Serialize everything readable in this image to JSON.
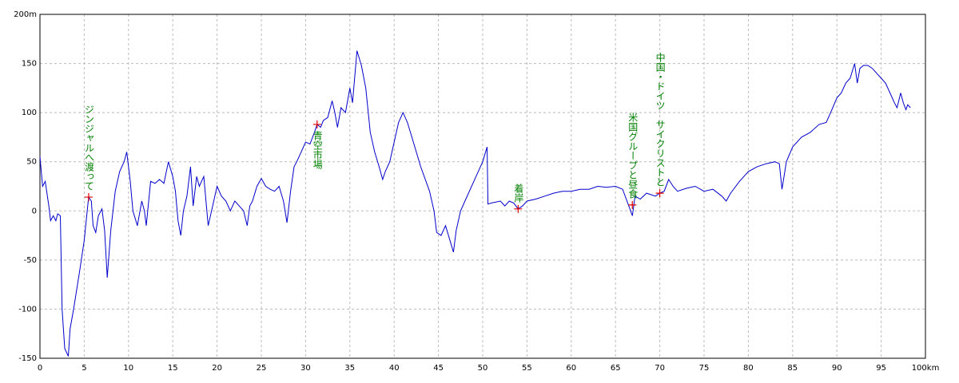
{
  "chart_data": {
    "type": "line",
    "color": "#0000cc",
    "grid": true,
    "xlim": [
      0,
      100
    ],
    "ylim": [
      -150,
      200
    ],
    "xticks": [
      0,
      5,
      10,
      15,
      20,
      25,
      30,
      35,
      40,
      45,
      50,
      55,
      60,
      65,
      70,
      75,
      80,
      85,
      90,
      95,
      {
        "value": 100,
        "label": "100km"
      }
    ],
    "yticks": [
      -150,
      -100,
      -50,
      0,
      50,
      100,
      150,
      {
        "value": 200,
        "label": "200m"
      }
    ],
    "x": [
      0,
      0.3,
      0.6,
      1.0,
      1.2,
      1.5,
      1.8,
      2.0,
      2.3,
      2.5,
      2.8,
      3.2,
      3.4,
      3.8,
      4.5,
      5.0,
      5.5,
      5.8,
      6.0,
      6.3,
      6.6,
      7.0,
      7.3,
      7.6,
      8.0,
      8.5,
      9.0,
      9.5,
      9.8,
      10.2,
      10.5,
      11.0,
      11.5,
      11.8,
      12.0,
      12.5,
      13.0,
      13.5,
      14.0,
      14.5,
      15.0,
      15.3,
      15.6,
      15.9,
      16.2,
      16.6,
      17.0,
      17.3,
      17.7,
      18.0,
      18.5,
      19.0,
      19.5,
      20.0,
      20.5,
      21.0,
      21.5,
      22.0,
      22.5,
      23.0,
      23.4,
      23.7,
      24.0,
      24.5,
      25.0,
      25.5,
      26.0,
      26.5,
      27.0,
      27.5,
      27.9,
      28.3,
      28.7,
      29.0,
      29.5,
      30.0,
      30.5,
      31.0,
      31.3,
      31.7,
      32.0,
      32.5,
      33.0,
      33.3,
      33.6,
      34.0,
      34.5,
      35.0,
      35.3,
      35.8,
      36.3,
      36.8,
      37.3,
      37.8,
      38.3,
      38.7,
      39.0,
      39.5,
      40.0,
      40.5,
      41.0,
      41.5,
      42.0,
      43.0,
      44.0,
      44.5,
      44.8,
      45.3,
      45.8,
      46.3,
      46.7,
      47.0,
      47.5,
      48.0,
      49.0,
      50.0,
      50.5,
      50.6,
      51.0,
      52.0,
      52.5,
      53.0,
      53.5,
      54.0,
      54.5,
      55.0,
      56.0,
      57.0,
      58.0,
      59.0,
      60.0,
      61.0,
      62.0,
      63.0,
      64.0,
      65.0,
      65.8,
      66.5,
      66.9,
      67.2,
      67.8,
      68.5,
      69.5,
      70.0,
      70.5,
      71.0,
      71.5,
      72.0,
      73.0,
      74.0,
      75.0,
      76.0,
      77.0,
      77.5,
      78.0,
      79.0,
      80.0,
      81.0,
      82.0,
      83.0,
      83.5,
      83.8,
      84.3,
      85.0,
      86.0,
      87.0,
      88.0,
      88.8,
      89.3,
      90.0,
      90.5,
      91.0,
      91.5,
      92.0,
      92.3,
      92.6,
      93.0,
      93.5,
      94.0,
      94.5,
      95.0,
      95.5,
      96.0,
      96.5,
      96.8,
      97.2,
      97.5,
      97.8,
      98.0,
      98.3
    ],
    "values": [
      55,
      25,
      30,
      5,
      -10,
      -5,
      -10,
      -3,
      -5,
      -100,
      -140,
      -148,
      -120,
      -100,
      -60,
      -30,
      14,
      10,
      -15,
      -22,
      -5,
      2,
      -20,
      -68,
      -20,
      20,
      40,
      50,
      60,
      30,
      0,
      -15,
      10,
      0,
      -15,
      30,
      28,
      32,
      28,
      50,
      35,
      20,
      -10,
      -25,
      0,
      15,
      45,
      5,
      35,
      25,
      35,
      -15,
      5,
      25,
      15,
      10,
      0,
      10,
      5,
      0,
      -15,
      5,
      10,
      25,
      33,
      25,
      22,
      20,
      25,
      10,
      -12,
      20,
      45,
      50,
      60,
      70,
      68,
      80,
      88,
      85,
      92,
      95,
      112,
      100,
      85,
      105,
      100,
      125,
      110,
      163,
      148,
      125,
      80,
      60,
      45,
      32,
      40,
      50,
      70,
      90,
      100,
      90,
      75,
      45,
      20,
      0,
      -22,
      -25,
      -15,
      -30,
      -42,
      -20,
      0,
      10,
      30,
      50,
      65,
      7,
      8,
      10,
      5,
      10,
      8,
      2,
      5,
      10,
      12,
      15,
      18,
      20,
      20,
      22,
      22,
      25,
      24,
      25,
      22,
      5,
      -5,
      15,
      12,
      18,
      15,
      18,
      20,
      32,
      25,
      20,
      23,
      25,
      20,
      22,
      15,
      10,
      18,
      30,
      40,
      45,
      48,
      50,
      48,
      22,
      50,
      65,
      75,
      80,
      88,
      90,
      100,
      115,
      120,
      130,
      135,
      150,
      130,
      145,
      148,
      148,
      145,
      140,
      135,
      130,
      120,
      110,
      105,
      120,
      110,
      103,
      108,
      105
    ],
    "annotations": [
      {
        "x": 5.5,
        "y": 14,
        "text": "ジンジャルへ渡って"
      },
      {
        "x": 31.3,
        "y": 88,
        "text": "青空市場"
      },
      {
        "x": 54,
        "y": 2,
        "text": "着岸"
      },
      {
        "x": 66.9,
        "y": 6,
        "text": "米国グループと昼食"
      },
      {
        "x": 70,
        "y": 18,
        "text": "中国・ドイツ　サイクリストと"
      }
    ]
  }
}
